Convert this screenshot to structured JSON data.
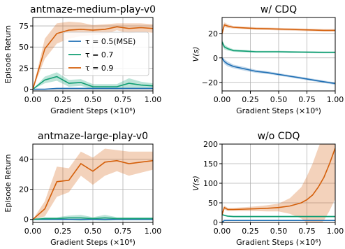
{
  "colors": {
    "mse": "#1f6fb4",
    "t07": "#109e73",
    "t09": "#d45f0a"
  },
  "legend": [
    {
      "key": "mse",
      "label": "τ = 0.5(MSE)"
    },
    {
      "key": "t07",
      "label": "τ = 0.7"
    },
    {
      "key": "t09",
      "label": "τ = 0.9"
    }
  ],
  "chart_data": [
    {
      "type": "line",
      "title": "antmaze-medium-play-v0",
      "xlabel": "Gradient Steps (×10⁶)",
      "ylabel": "Episode Return",
      "xlim": [
        0,
        1.0
      ],
      "ylim": [
        -2,
        85
      ],
      "xticks": [
        "0.00",
        "0.25",
        "0.50",
        "0.75",
        "1.00"
      ],
      "yticks": [
        0,
        25,
        50,
        75
      ],
      "grid": true,
      "legend": "center",
      "x": [
        0,
        0.1,
        0.2,
        0.3,
        0.4,
        0.5,
        0.6,
        0.7,
        0.8,
        0.9,
        1.0
      ],
      "series": [
        {
          "key": "mse",
          "values": [
            0,
            0,
            1,
            1,
            1,
            1,
            1,
            1,
            1,
            1,
            1
          ],
          "band": [
            0.5,
            0.5,
            0.5,
            0.5,
            0.5,
            0.5,
            0.5,
            0.5,
            0.5,
            0.5,
            0.5
          ]
        },
        {
          "key": "t07",
          "values": [
            0,
            11,
            15,
            7,
            8,
            3,
            3,
            3,
            7,
            5,
            4
          ],
          "band": [
            0,
            4,
            5,
            4,
            4,
            3,
            3,
            3,
            6,
            4,
            3
          ]
        },
        {
          "key": "t09",
          "values": [
            0,
            48,
            66,
            70,
            71,
            70,
            71,
            74,
            72,
            73,
            72
          ],
          "band": [
            0,
            12,
            12,
            10,
            8,
            6,
            6,
            4,
            6,
            5,
            5
          ]
        }
      ]
    },
    {
      "type": "line",
      "title": "w/ CDQ",
      "xlabel": "Gradient Steps (×10⁶)",
      "ylabel": "V(s)",
      "xlim": [
        0,
        1.0
      ],
      "ylim": [
        -27,
        33
      ],
      "xticks": [
        "0.00",
        "0.25",
        "0.50",
        "0.75",
        "1.00"
      ],
      "yticks": [
        -20,
        0,
        20
      ],
      "grid": true,
      "x": [
        0,
        0.02,
        0.05,
        0.1,
        0.2,
        0.3,
        0.4,
        0.5,
        0.6,
        0.7,
        0.8,
        0.9,
        1.0
      ],
      "series": [
        {
          "key": "mse",
          "values": [
            0,
            -3,
            -5,
            -7,
            -9,
            -11,
            -12,
            -13.5,
            -15,
            -16.5,
            -18,
            -19.5,
            -21
          ],
          "band": [
            1,
            2,
            2,
            1.5,
            1.5,
            1.2,
            1.2,
            1,
            1,
            1,
            1,
            1,
            1
          ]
        },
        {
          "key": "t07",
          "values": [
            13,
            9,
            7.5,
            6,
            5.5,
            5,
            5,
            5,
            4.8,
            4.7,
            4.6,
            4.5,
            4.5
          ],
          "band": [
            2,
            2,
            1.5,
            1,
            1,
            0.8,
            0.8,
            0.8,
            0.8,
            0.8,
            0.8,
            0.8,
            0.8
          ]
        },
        {
          "key": "t09",
          "values": [
            20,
            27,
            26,
            25,
            24.5,
            24,
            23.8,
            23.5,
            23.3,
            23,
            22.8,
            22.5,
            22.5
          ],
          "band": [
            2,
            2,
            1.5,
            1,
            1,
            1,
            1,
            1,
            1,
            1,
            1,
            1,
            1
          ]
        }
      ]
    },
    {
      "type": "line",
      "title": "antmaze-large-play-v0",
      "xlabel": "Gradient Steps (×10⁶)",
      "ylabel": "Episode Return",
      "xlim": [
        0,
        1.0
      ],
      "ylim": [
        -2,
        50
      ],
      "xticks": [
        "0.00",
        "0.25",
        "0.50",
        "0.75",
        "1.00"
      ],
      "yticks": [
        0,
        20,
        40
      ],
      "grid": true,
      "x": [
        0,
        0.1,
        0.2,
        0.3,
        0.4,
        0.5,
        0.6,
        0.7,
        0.8,
        0.9,
        1.0
      ],
      "series": [
        {
          "key": "mse",
          "values": [
            0,
            0,
            0,
            0,
            0,
            0,
            0,
            0,
            0,
            0,
            0
          ],
          "band": [
            0.3,
            0.3,
            0.3,
            0.3,
            0.3,
            0.3,
            0.3,
            0.3,
            0.3,
            0.3,
            0.3
          ]
        },
        {
          "key": "t07",
          "values": [
            0,
            0.5,
            0.5,
            1,
            1,
            0.5,
            1,
            0.5,
            0.5,
            0.5,
            0.5
          ],
          "band": [
            0.5,
            1,
            1,
            1.5,
            2,
            1,
            2,
            1,
            1,
            1,
            1
          ]
        },
        {
          "key": "t09",
          "values": [
            0,
            7,
            25,
            26,
            37,
            32,
            38,
            39,
            37,
            38,
            39
          ],
          "band": [
            0,
            5,
            10,
            8,
            8,
            9,
            9,
            7,
            8,
            7,
            6
          ]
        }
      ]
    },
    {
      "type": "line",
      "title": "w/o CDQ",
      "xlabel": "Gradient Steps (×10⁶)",
      "ylabel": "V(s)",
      "xlim": [
        0,
        1.0
      ],
      "ylim": [
        0,
        200
      ],
      "xticks": [
        "0.00",
        "0.25",
        "0.50",
        "0.75",
        "1.00"
      ],
      "yticks": [
        0,
        50,
        100,
        150,
        200
      ],
      "grid": true,
      "x": [
        0,
        0.02,
        0.05,
        0.1,
        0.2,
        0.3,
        0.4,
        0.5,
        0.6,
        0.7,
        0.75,
        0.8,
        0.85,
        0.9,
        0.95,
        1.0
      ],
      "series": [
        {
          "key": "mse",
          "values": [
            0,
            5,
            5,
            5,
            5,
            5,
            5,
            5,
            5,
            5,
            5,
            5,
            5,
            5,
            5,
            5
          ],
          "band": [
            1,
            1,
            1,
            1,
            1,
            1,
            1,
            1,
            1,
            1,
            1,
            1,
            1,
            1,
            1,
            1
          ]
        },
        {
          "key": "t07",
          "values": [
            20,
            18,
            16,
            15,
            15,
            15,
            15,
            15,
            15,
            15,
            15,
            15,
            15,
            15,
            15,
            15
          ],
          "band": [
            2,
            2,
            2,
            2,
            2,
            2,
            2,
            2,
            2,
            2,
            2,
            2,
            2,
            2,
            2,
            2
          ]
        },
        {
          "key": "t09",
          "values": [
            20,
            38,
            33,
            33,
            34,
            35,
            36,
            38,
            42,
            50,
            58,
            70,
            90,
            115,
            150,
            190
          ],
          "band": [
            5,
            5,
            4,
            4,
            5,
            6,
            8,
            10,
            20,
            40,
            60,
            80,
            100,
            110,
            120,
            130
          ]
        }
      ]
    }
  ]
}
